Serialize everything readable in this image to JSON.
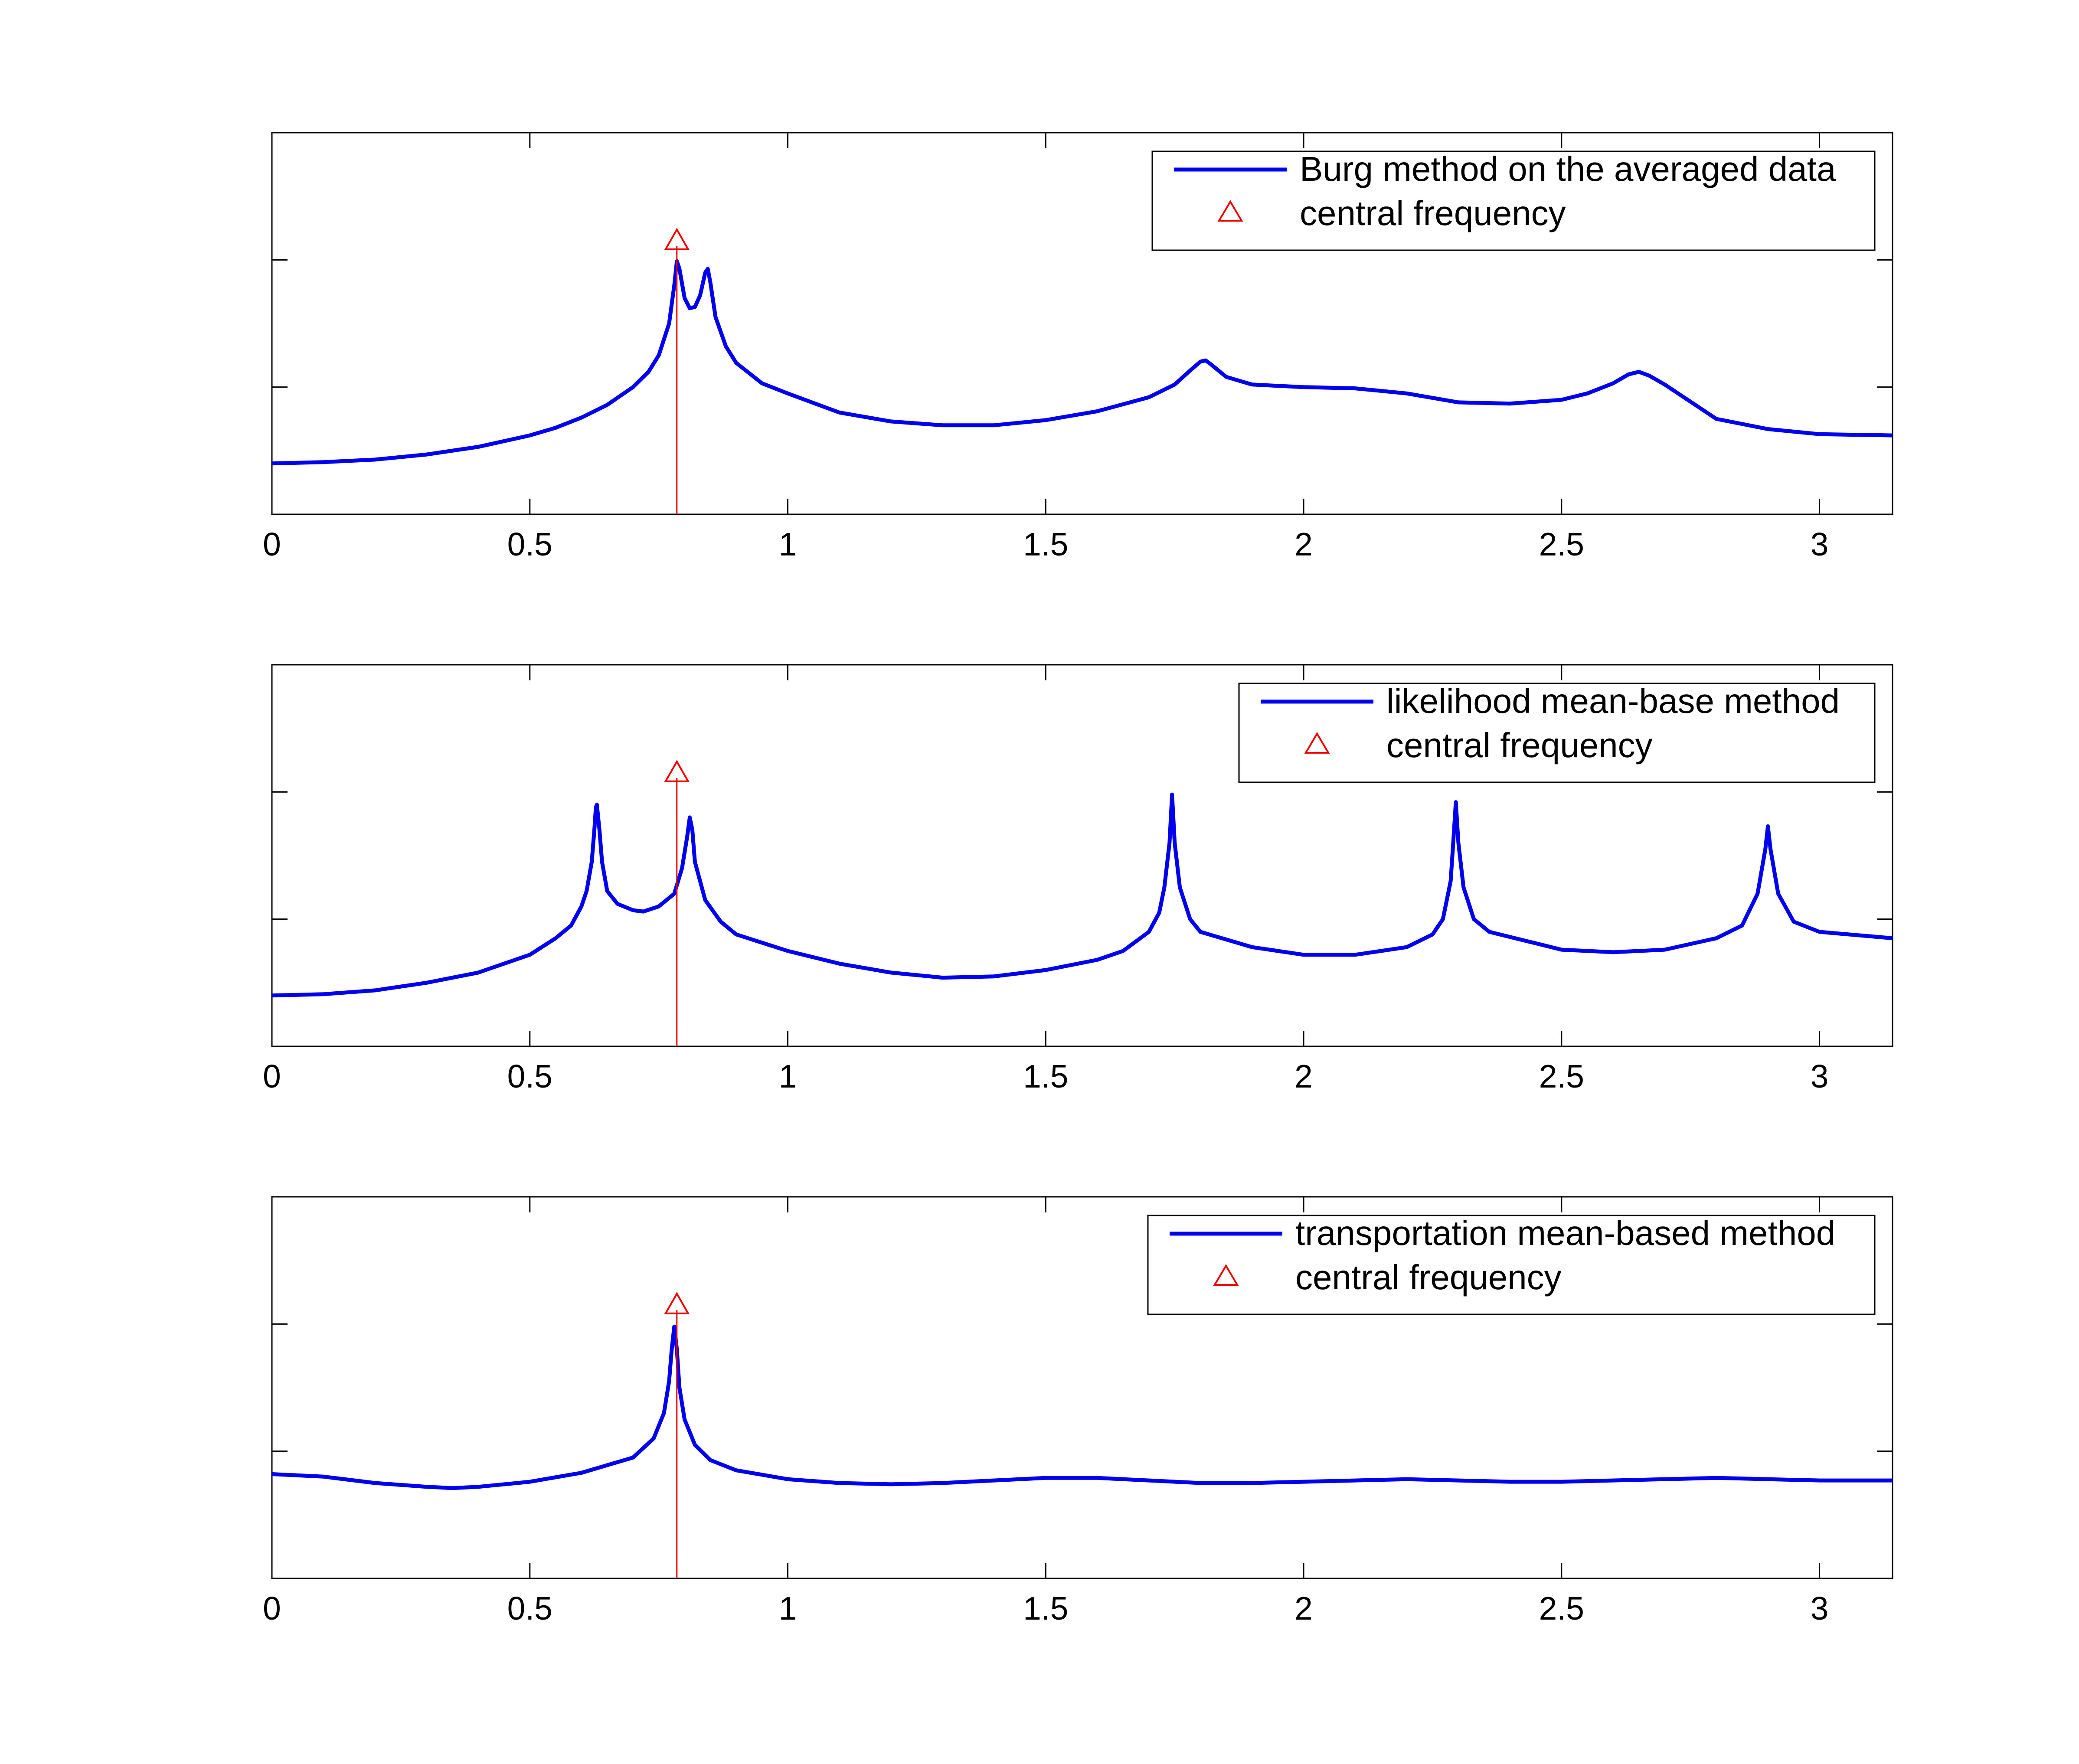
{
  "chart_data": [
    {
      "type": "line",
      "title": "",
      "xlabel": "",
      "ylabel": "",
      "xlim": [
        0,
        3.1416
      ],
      "ylim": [
        0,
        3
      ],
      "xticks": [
        0,
        0.5,
        1,
        1.5,
        2,
        2.5,
        3
      ],
      "xtick_labels": [
        "0",
        "0.5",
        "1",
        "1.5",
        "2",
        "2.5",
        "3"
      ],
      "yticks": [
        1,
        2
      ],
      "y_tick_labels_visible": false,
      "grid": false,
      "legend_position": "top-right",
      "series": [
        {
          "name": "Burg method on the averaged data",
          "color": "#0000ee",
          "points": [
            [
              0,
              0.4
            ],
            [
              0.1,
              0.41
            ],
            [
              0.2,
              0.43
            ],
            [
              0.3,
              0.47
            ],
            [
              0.4,
              0.53
            ],
            [
              0.5,
              0.62
            ],
            [
              0.55,
              0.68
            ],
            [
              0.6,
              0.76
            ],
            [
              0.65,
              0.86
            ],
            [
              0.7,
              1.0
            ],
            [
              0.73,
              1.12
            ],
            [
              0.75,
              1.25
            ],
            [
              0.77,
              1.5
            ],
            [
              0.78,
              1.8
            ],
            [
              0.785,
              1.99
            ],
            [
              0.79,
              1.93
            ],
            [
              0.8,
              1.7
            ],
            [
              0.81,
              1.62
            ],
            [
              0.82,
              1.63
            ],
            [
              0.83,
              1.72
            ],
            [
              0.84,
              1.9
            ],
            [
              0.845,
              1.93
            ],
            [
              0.85,
              1.82
            ],
            [
              0.86,
              1.55
            ],
            [
              0.88,
              1.32
            ],
            [
              0.9,
              1.19
            ],
            [
              0.95,
              1.03
            ],
            [
              1.0,
              0.95
            ],
            [
              1.1,
              0.8
            ],
            [
              1.2,
              0.73
            ],
            [
              1.3,
              0.7
            ],
            [
              1.4,
              0.7
            ],
            [
              1.5,
              0.74
            ],
            [
              1.6,
              0.81
            ],
            [
              1.7,
              0.92
            ],
            [
              1.75,
              1.02
            ],
            [
              1.78,
              1.13
            ],
            [
              1.8,
              1.2
            ],
            [
              1.81,
              1.21
            ],
            [
              1.82,
              1.18
            ],
            [
              1.85,
              1.08
            ],
            [
              1.9,
              1.02
            ],
            [
              2.0,
              1.0
            ],
            [
              2.1,
              0.99
            ],
            [
              2.2,
              0.95
            ],
            [
              2.3,
              0.88
            ],
            [
              2.4,
              0.87
            ],
            [
              2.5,
              0.9
            ],
            [
              2.55,
              0.95
            ],
            [
              2.6,
              1.03
            ],
            [
              2.63,
              1.1
            ],
            [
              2.65,
              1.12
            ],
            [
              2.67,
              1.09
            ],
            [
              2.7,
              1.02
            ],
            [
              2.8,
              0.75
            ],
            [
              2.9,
              0.67
            ],
            [
              3.0,
              0.63
            ],
            [
              3.1416,
              0.62
            ]
          ]
        },
        {
          "name": "central frequency",
          "color": "#ee0000",
          "marker": "triangle",
          "x": 0.785,
          "y": 2.15
        }
      ]
    },
    {
      "type": "line",
      "title": "",
      "xlabel": "",
      "ylabel": "",
      "xlim": [
        0,
        3.1416
      ],
      "ylim": [
        0,
        3
      ],
      "xticks": [
        0,
        0.5,
        1,
        1.5,
        2,
        2.5,
        3
      ],
      "xtick_labels": [
        "0",
        "0.5",
        "1",
        "1.5",
        "2",
        "2.5",
        "3"
      ],
      "yticks": [
        1,
        2
      ],
      "y_tick_labels_visible": false,
      "grid": false,
      "legend_position": "top-right",
      "series": [
        {
          "name": "likelihood mean-base method",
          "color": "#0000ee",
          "points": [
            [
              0,
              0.4
            ],
            [
              0.1,
              0.41
            ],
            [
              0.2,
              0.44
            ],
            [
              0.3,
              0.5
            ],
            [
              0.4,
              0.58
            ],
            [
              0.5,
              0.72
            ],
            [
              0.55,
              0.85
            ],
            [
              0.58,
              0.95
            ],
            [
              0.6,
              1.1
            ],
            [
              0.61,
              1.22
            ],
            [
              0.62,
              1.45
            ],
            [
              0.625,
              1.7
            ],
            [
              0.628,
              1.88
            ],
            [
              0.63,
              1.9
            ],
            [
              0.635,
              1.7
            ],
            [
              0.64,
              1.45
            ],
            [
              0.65,
              1.22
            ],
            [
              0.67,
              1.12
            ],
            [
              0.7,
              1.07
            ],
            [
              0.72,
              1.06
            ],
            [
              0.75,
              1.1
            ],
            [
              0.78,
              1.2
            ],
            [
              0.795,
              1.4
            ],
            [
              0.805,
              1.65
            ],
            [
              0.81,
              1.8
            ],
            [
              0.815,
              1.7
            ],
            [
              0.82,
              1.45
            ],
            [
              0.84,
              1.15
            ],
            [
              0.87,
              0.98
            ],
            [
              0.9,
              0.88
            ],
            [
              1.0,
              0.75
            ],
            [
              1.1,
              0.65
            ],
            [
              1.2,
              0.58
            ],
            [
              1.3,
              0.54
            ],
            [
              1.4,
              0.55
            ],
            [
              1.5,
              0.6
            ],
            [
              1.6,
              0.68
            ],
            [
              1.65,
              0.75
            ],
            [
              1.7,
              0.9
            ],
            [
              1.72,
              1.05
            ],
            [
              1.73,
              1.25
            ],
            [
              1.74,
              1.6
            ],
            [
              1.745,
              1.98
            ],
            [
              1.75,
              1.6
            ],
            [
              1.76,
              1.25
            ],
            [
              1.78,
              1.0
            ],
            [
              1.8,
              0.9
            ],
            [
              1.9,
              0.78
            ],
            [
              2.0,
              0.72
            ],
            [
              2.1,
              0.72
            ],
            [
              2.2,
              0.78
            ],
            [
              2.25,
              0.88
            ],
            [
              2.27,
              1.0
            ],
            [
              2.285,
              1.3
            ],
            [
              2.29,
              1.6
            ],
            [
              2.295,
              1.92
            ],
            [
              2.3,
              1.6
            ],
            [
              2.31,
              1.25
            ],
            [
              2.33,
              1.0
            ],
            [
              2.36,
              0.9
            ],
            [
              2.5,
              0.76
            ],
            [
              2.6,
              0.74
            ],
            [
              2.7,
              0.76
            ],
            [
              2.8,
              0.85
            ],
            [
              2.85,
              0.95
            ],
            [
              2.88,
              1.2
            ],
            [
              2.895,
              1.55
            ],
            [
              2.9,
              1.73
            ],
            [
              2.905,
              1.55
            ],
            [
              2.92,
              1.2
            ],
            [
              2.95,
              0.98
            ],
            [
              3.0,
              0.9
            ],
            [
              3.1416,
              0.85
            ]
          ]
        },
        {
          "name": "central frequency",
          "color": "#ee0000",
          "marker": "triangle",
          "x": 0.785,
          "y": 2.15
        }
      ]
    },
    {
      "type": "line",
      "title": "",
      "xlabel": "",
      "ylabel": "",
      "xlim": [
        0,
        3.1416
      ],
      "ylim": [
        0,
        3
      ],
      "xticks": [
        0,
        0.5,
        1,
        1.5,
        2,
        2.5,
        3
      ],
      "xtick_labels": [
        "0",
        "0.5",
        "1",
        "1.5",
        "2",
        "2.5",
        "3"
      ],
      "yticks": [
        1,
        2
      ],
      "y_tick_labels_visible": false,
      "grid": false,
      "legend_position": "top-right",
      "series": [
        {
          "name": "transportation mean-based method",
          "color": "#0000ee",
          "points": [
            [
              0,
              0.82
            ],
            [
              0.1,
              0.8
            ],
            [
              0.2,
              0.75
            ],
            [
              0.3,
              0.72
            ],
            [
              0.35,
              0.71
            ],
            [
              0.4,
              0.72
            ],
            [
              0.5,
              0.76
            ],
            [
              0.6,
              0.83
            ],
            [
              0.7,
              0.95
            ],
            [
              0.74,
              1.1
            ],
            [
              0.76,
              1.3
            ],
            [
              0.77,
              1.55
            ],
            [
              0.775,
              1.8
            ],
            [
              0.78,
              1.98
            ],
            [
              0.785,
              1.8
            ],
            [
              0.79,
              1.5
            ],
            [
              0.8,
              1.25
            ],
            [
              0.82,
              1.05
            ],
            [
              0.85,
              0.93
            ],
            [
              0.9,
              0.85
            ],
            [
              1.0,
              0.78
            ],
            [
              1.1,
              0.75
            ],
            [
              1.2,
              0.74
            ],
            [
              1.3,
              0.75
            ],
            [
              1.4,
              0.77
            ],
            [
              1.5,
              0.79
            ],
            [
              1.6,
              0.79
            ],
            [
              1.7,
              0.77
            ],
            [
              1.8,
              0.75
            ],
            [
              1.9,
              0.75
            ],
            [
              2.0,
              0.76
            ],
            [
              2.1,
              0.77
            ],
            [
              2.2,
              0.78
            ],
            [
              2.3,
              0.77
            ],
            [
              2.4,
              0.76
            ],
            [
              2.5,
              0.76
            ],
            [
              2.6,
              0.77
            ],
            [
              2.7,
              0.78
            ],
            [
              2.8,
              0.79
            ],
            [
              2.9,
              0.78
            ],
            [
              3.0,
              0.77
            ],
            [
              3.1416,
              0.77
            ]
          ]
        },
        {
          "name": "central frequency",
          "color": "#ee0000",
          "marker": "triangle",
          "x": 0.785,
          "y": 2.15
        }
      ]
    }
  ]
}
